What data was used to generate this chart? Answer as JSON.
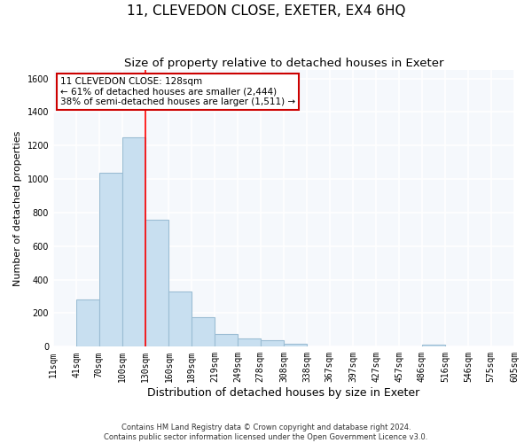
{
  "title": "11, CLEVEDON CLOSE, EXETER, EX4 6HQ",
  "subtitle": "Size of property relative to detached houses in Exeter",
  "xlabel": "Distribution of detached houses by size in Exeter",
  "ylabel": "Number of detached properties",
  "bar_color": "#c8dff0",
  "bar_edge_color": "#9bbdd4",
  "property_line_x": 130,
  "property_line_color": "red",
  "annotation_text": "11 CLEVEDON CLOSE: 128sqm\n← 61% of detached houses are smaller (2,444)\n38% of semi-detached houses are larger (1,511) →",
  "annotation_box_color": "white",
  "annotation_box_edge": "#cc0000",
  "bin_edges": [
    11,
    41,
    70,
    100,
    130,
    160,
    189,
    219,
    249,
    278,
    308,
    338,
    367,
    397,
    427,
    457,
    486,
    516,
    546,
    575,
    605
  ],
  "bar_heights": [
    0,
    280,
    1040,
    1250,
    760,
    330,
    175,
    75,
    50,
    38,
    15,
    0,
    0,
    0,
    0,
    0,
    10,
    0,
    0,
    0
  ],
  "ylim": [
    0,
    1650
  ],
  "yticks": [
    0,
    200,
    400,
    600,
    800,
    1000,
    1200,
    1400,
    1600
  ],
  "footnote": "Contains HM Land Registry data © Crown copyright and database right 2024.\nContains public sector information licensed under the Open Government Licence v3.0.",
  "background_color": "#ffffff",
  "plot_bg_color": "#f5f8fc",
  "grid_color": "#ffffff",
  "title_fontsize": 11,
  "subtitle_fontsize": 9.5,
  "xlabel_fontsize": 9,
  "ylabel_fontsize": 8,
  "tick_fontsize": 7,
  "annot_fontsize": 7.5,
  "footnote_fontsize": 6
}
